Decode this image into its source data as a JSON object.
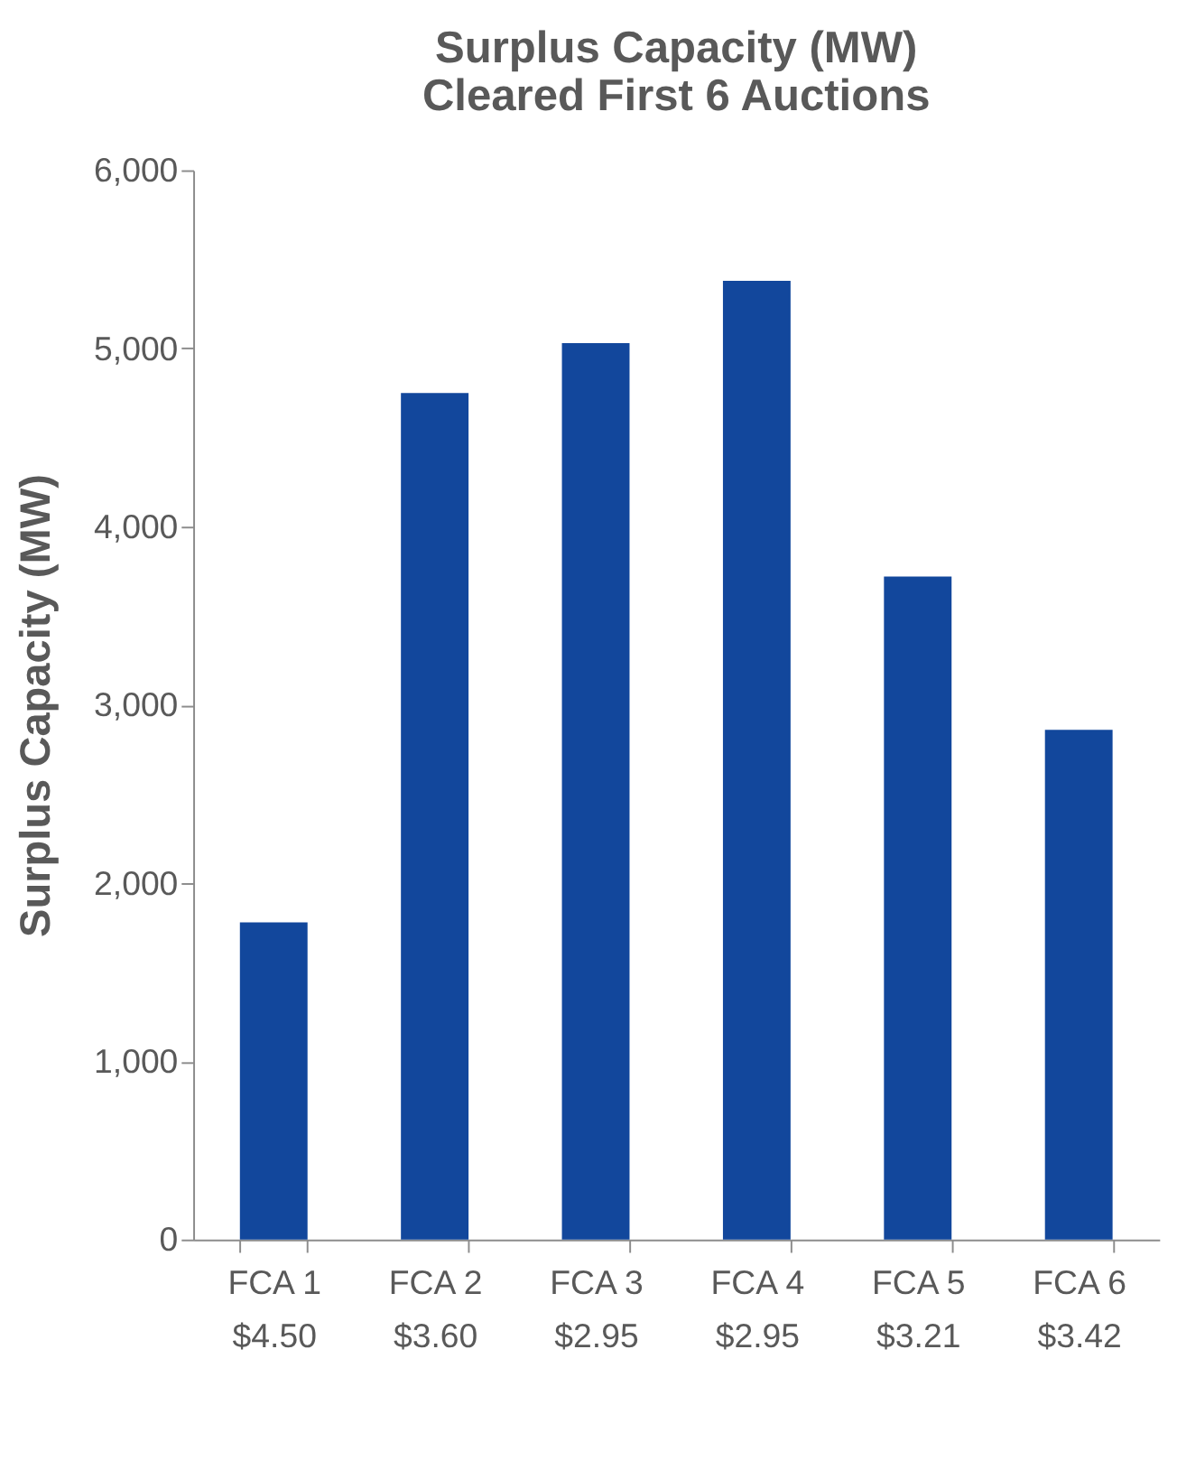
{
  "chart_data": {
    "type": "bar",
    "title": "Surplus Capacity (MW)\nCleared First 6 Auctions",
    "ylabel": "Surplus Capacity (MW)",
    "categories": [
      "FCA 1\n$4.50",
      "FCA 2\n$3.60",
      "FCA 3\n$2.95",
      "FCA 4\n$2.95",
      "FCA 5\n$3.21",
      "FCA 6\n$3.42"
    ],
    "values": [
      1780,
      4750,
      5030,
      5380,
      3720,
      2860
    ],
    "color": "#12479c",
    "ylim": [
      0,
      6000
    ],
    "yticks": [
      {
        "value": 0,
        "label": "0"
      },
      {
        "value": 1000,
        "label": "1,000"
      },
      {
        "value": 2000,
        "label": "2,000"
      },
      {
        "value": 3000,
        "label": "3,000"
      },
      {
        "value": 4000,
        "label": "4,000"
      },
      {
        "value": 5000,
        "label": "5,000"
      },
      {
        "value": 6000,
        "label": "6,000"
      }
    ],
    "grid": false
  }
}
